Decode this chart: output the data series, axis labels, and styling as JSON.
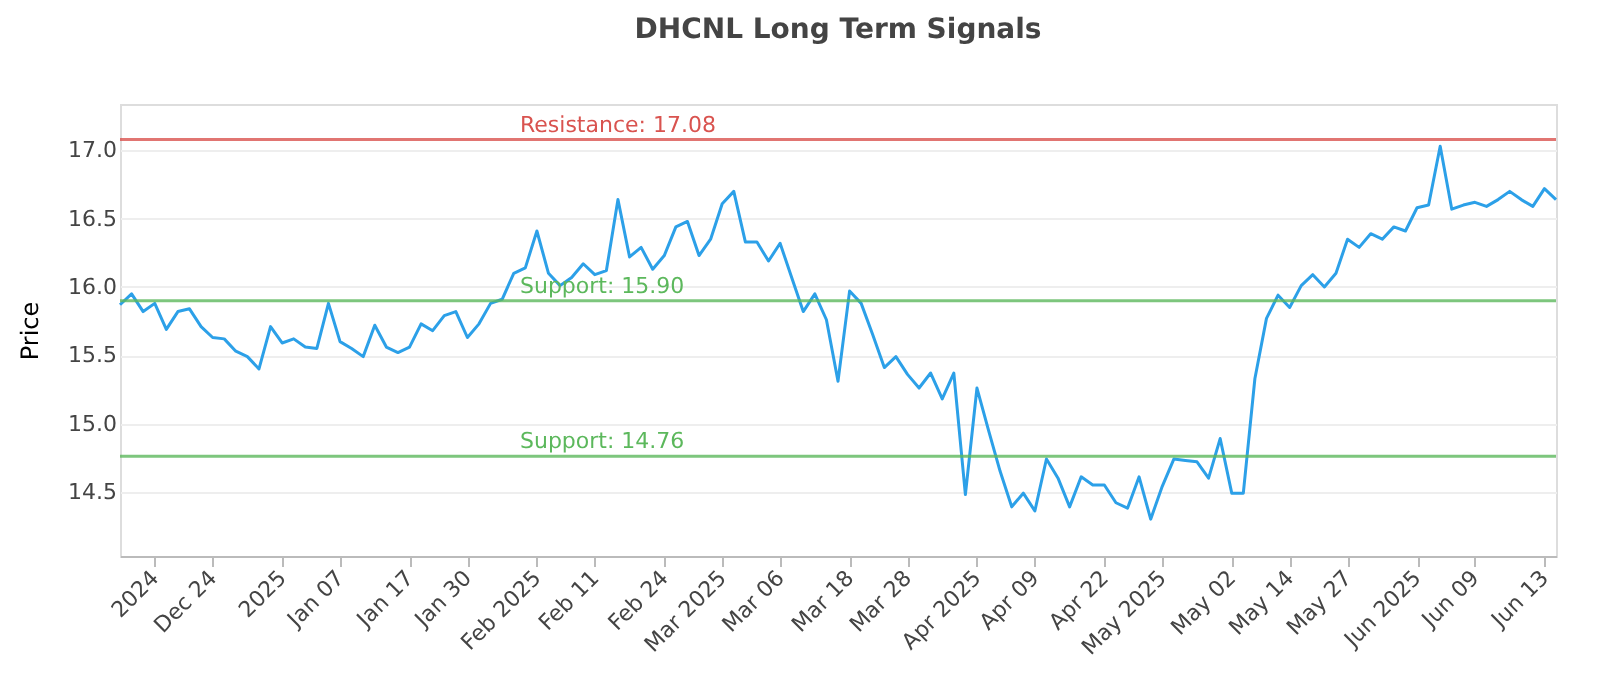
{
  "chart_data": {
    "type": "line",
    "title": "DHCNL Long Term Signals",
    "ylabel": "Price",
    "categories": [
      null,
      null,
      null,
      "2024",
      null,
      null,
      null,
      null,
      "Dec 24",
      null,
      null,
      null,
      null,
      null,
      "2025",
      null,
      null,
      null,
      null,
      "Jan 07",
      null,
      null,
      null,
      null,
      null,
      "Jan 17",
      null,
      null,
      null,
      null,
      "Jan 30",
      null,
      null,
      null,
      null,
      null,
      "Feb 2025",
      null,
      null,
      null,
      null,
      "Feb 11",
      null,
      null,
      null,
      null,
      null,
      "Feb 24",
      null,
      null,
      null,
      null,
      "Mar 2025",
      null,
      null,
      null,
      null,
      "Mar 06",
      null,
      null,
      null,
      null,
      null,
      "Mar 18",
      null,
      null,
      null,
      null,
      "Mar 28",
      null,
      null,
      null,
      null,
      null,
      "Apr 2025",
      null,
      null,
      null,
      null,
      "Apr 09",
      null,
      null,
      null,
      null,
      null,
      "Apr 22",
      null,
      null,
      null,
      null,
      "May 2025",
      null,
      null,
      null,
      null,
      null,
      "May 02",
      null,
      null,
      null,
      null,
      "May 14",
      null,
      null,
      null,
      null,
      "May 27",
      null,
      null,
      null,
      null,
      null,
      "Jun 2025",
      null,
      null,
      null,
      null,
      "Jun 09",
      null,
      null,
      null,
      null,
      null,
      "Jun 13",
      null
    ],
    "series": [
      {
        "color": "#2ca0e8",
        "values": [
          15.87,
          15.95,
          15.82,
          15.88,
          15.69,
          15.82,
          15.84,
          15.71,
          15.63,
          15.62,
          15.53,
          15.49,
          15.4,
          15.71,
          15.59,
          15.62,
          15.56,
          15.55,
          15.88,
          15.6,
          15.55,
          15.49,
          15.72,
          15.56,
          15.52,
          15.56,
          15.73,
          15.68,
          15.79,
          15.82,
          15.63,
          15.73,
          15.88,
          15.91,
          16.1,
          16.14,
          16.41,
          16.1,
          16.01,
          16.07,
          16.17,
          16.09,
          16.12,
          16.64,
          16.22,
          16.29,
          16.13,
          16.23,
          16.44,
          16.48,
          16.23,
          16.35,
          16.61,
          16.7,
          16.33,
          16.33,
          16.19,
          16.32,
          16.07,
          15.82,
          15.95,
          15.76,
          15.31,
          15.97,
          15.88,
          15.65,
          15.41,
          15.49,
          15.36,
          15.26,
          15.37,
          15.18,
          15.37,
          14.48,
          15.26,
          14.95,
          14.65,
          14.39,
          14.49,
          14.36,
          14.74,
          14.6,
          14.39,
          14.61,
          14.55,
          14.55,
          14.42,
          14.38,
          14.61,
          14.3,
          14.54,
          14.74,
          14.73,
          14.72,
          14.6,
          14.89,
          14.49,
          14.49,
          15.33,
          15.77,
          15.94,
          15.85,
          16.01,
          16.09,
          16.0,
          16.1,
          16.35,
          16.29,
          16.39,
          16.35,
          16.44,
          16.41,
          16.58,
          16.6,
          17.03,
          16.57,
          16.6,
          16.62,
          16.59,
          16.64,
          16.7,
          16.64,
          16.59,
          16.72,
          16.64
        ]
      }
    ],
    "ylim": [
      14.03,
      17.34
    ],
    "yticks": [
      14.5,
      {
        "value": 15,
        "label": "15.0"
      },
      15.5,
      {
        "value": 16,
        "label": "16.0"
      },
      16.5,
      {
        "value": 17,
        "label": "17.0"
      }
    ],
    "ref_lines": [
      {
        "axis": "y",
        "value": 17.08,
        "label": "Resistance: 17.08",
        "color": "#d9534f"
      },
      {
        "axis": "y",
        "value": 15.9,
        "label": "Support: 15.90",
        "color": "#5cb85c"
      },
      {
        "axis": "y",
        "value": 14.76,
        "label": "Support: 14.76",
        "color": "#5cb85c"
      }
    ],
    "grid": "y",
    "marker": "none",
    "line_style": "solid"
  }
}
